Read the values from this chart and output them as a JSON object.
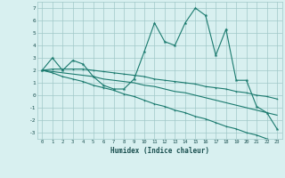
{
  "xlabel": "Humidex (Indice chaleur)",
  "x_values": [
    0,
    1,
    2,
    3,
    4,
    5,
    6,
    7,
    8,
    9,
    10,
    11,
    12,
    13,
    14,
    15,
    16,
    17,
    18,
    19,
    20,
    21,
    22,
    23
  ],
  "line1_y": [
    2.0,
    3.0,
    2.0,
    2.8,
    2.5,
    1.5,
    0.8,
    0.5,
    0.5,
    1.3,
    3.5,
    5.8,
    4.3,
    4.0,
    5.8,
    7.0,
    6.4,
    3.2,
    5.3,
    1.2,
    1.2,
    -0.9,
    -1.4,
    -2.7
  ],
  "line2_y": [
    2.0,
    2.1,
    2.1,
    2.1,
    2.1,
    2.0,
    1.9,
    1.8,
    1.7,
    1.6,
    1.5,
    1.3,
    1.2,
    1.1,
    1.0,
    0.9,
    0.7,
    0.6,
    0.5,
    0.3,
    0.2,
    0.0,
    -0.1,
    -0.3
  ],
  "line3_y": [
    2.0,
    1.9,
    1.8,
    1.7,
    1.6,
    1.5,
    1.3,
    1.2,
    1.1,
    1.0,
    0.8,
    0.7,
    0.5,
    0.3,
    0.2,
    0.0,
    -0.2,
    -0.4,
    -0.6,
    -0.8,
    -1.0,
    -1.2,
    -1.4,
    -1.6
  ],
  "line4_y": [
    2.0,
    1.8,
    1.5,
    1.3,
    1.1,
    0.8,
    0.6,
    0.4,
    0.1,
    -0.1,
    -0.4,
    -0.7,
    -0.9,
    -1.2,
    -1.4,
    -1.7,
    -1.9,
    -2.2,
    -2.5,
    -2.7,
    -3.0,
    -3.2,
    -3.5,
    -3.7
  ],
  "line_color": "#1a7a6e",
  "bg_color": "#d8f0f0",
  "grid_color": "#a0c8c8",
  "ylim": [
    -3.5,
    7.5
  ],
  "xlim": [
    -0.5,
    23.5
  ],
  "yticks": [
    -3,
    -2,
    -1,
    0,
    1,
    2,
    3,
    4,
    5,
    6,
    7
  ],
  "xticks": [
    0,
    1,
    2,
    3,
    4,
    5,
    6,
    7,
    8,
    9,
    10,
    11,
    12,
    13,
    14,
    15,
    16,
    17,
    18,
    19,
    20,
    21,
    22,
    23
  ]
}
